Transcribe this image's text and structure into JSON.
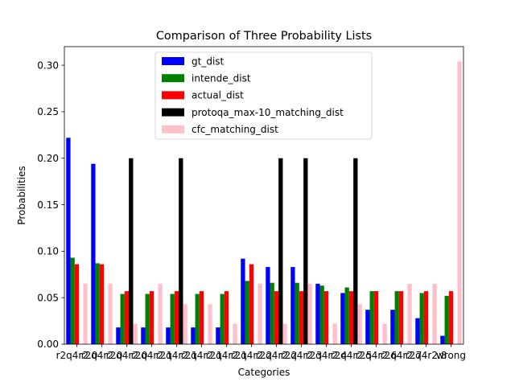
{
  "chart_data": {
    "type": "bar",
    "title": "Comparison of Three Probability Lists",
    "xlabel": "Categories",
    "ylabel": "Probabilities",
    "ylim": [
      0,
      0.32
    ],
    "yticks": [
      "0.00",
      "0.05",
      "0.10",
      "0.15",
      "0.20",
      "0.25",
      "0.30"
    ],
    "ytick_values": [
      0,
      0.05,
      0.1,
      0.15,
      0.2,
      0.25,
      0.3
    ],
    "categories": [
      "r2q4r2.0",
      "r2q4r2.0",
      "r2q4r2.0",
      "r2q4r2.1",
      "r2q4r2.1",
      "r2q4r2.1",
      "r2q4r2.1",
      "r2q4r2.2",
      "r2q4r2.2",
      "r2q4r2.3",
      "r2q4r2.4",
      "r2q4r2.5",
      "r2q4r2.6",
      "r2q4r2.7",
      "r2q4r2.8",
      "wrong"
    ],
    "series": [
      {
        "name": "gt_dist",
        "color": "#0000ff",
        "values": [
          0.222,
          0.194,
          0.018,
          0.018,
          0.018,
          0.018,
          0.018,
          0.092,
          0.083,
          0.083,
          0.065,
          0.055,
          0.037,
          0.037,
          0.028,
          0.009
        ]
      },
      {
        "name": "intende_dist",
        "color": "#008000",
        "values": [
          0.093,
          0.087,
          0.054,
          0.054,
          0.054,
          0.054,
          0.054,
          0.068,
          0.066,
          0.066,
          0.063,
          0.061,
          0.057,
          0.057,
          0.055,
          0.052
        ]
      },
      {
        "name": "actual_dist",
        "color": "#ff0000",
        "values": [
          0.086,
          0.086,
          0.057,
          0.057,
          0.057,
          0.057,
          0.057,
          0.086,
          0.057,
          0.057,
          0.057,
          0.057,
          0.057,
          0.057,
          0.057,
          0.057
        ]
      },
      {
        "name": "protoqa_max-10_matching_dist",
        "color": "#000000",
        "values": [
          0,
          0,
          0.2,
          0,
          0.2,
          0,
          0,
          0,
          0.2,
          0.2,
          0,
          0.2,
          0,
          0,
          0,
          0
        ]
      },
      {
        "name": "cfc_matching_dist",
        "color": "#ffc0cb",
        "values": [
          0.065,
          0.065,
          0.022,
          0.065,
          0.043,
          0.043,
          0.022,
          0.065,
          0.022,
          0.065,
          0.022,
          0.043,
          0.022,
          0.065,
          0.065,
          0.304
        ]
      }
    ],
    "legend_position": "top-center"
  }
}
